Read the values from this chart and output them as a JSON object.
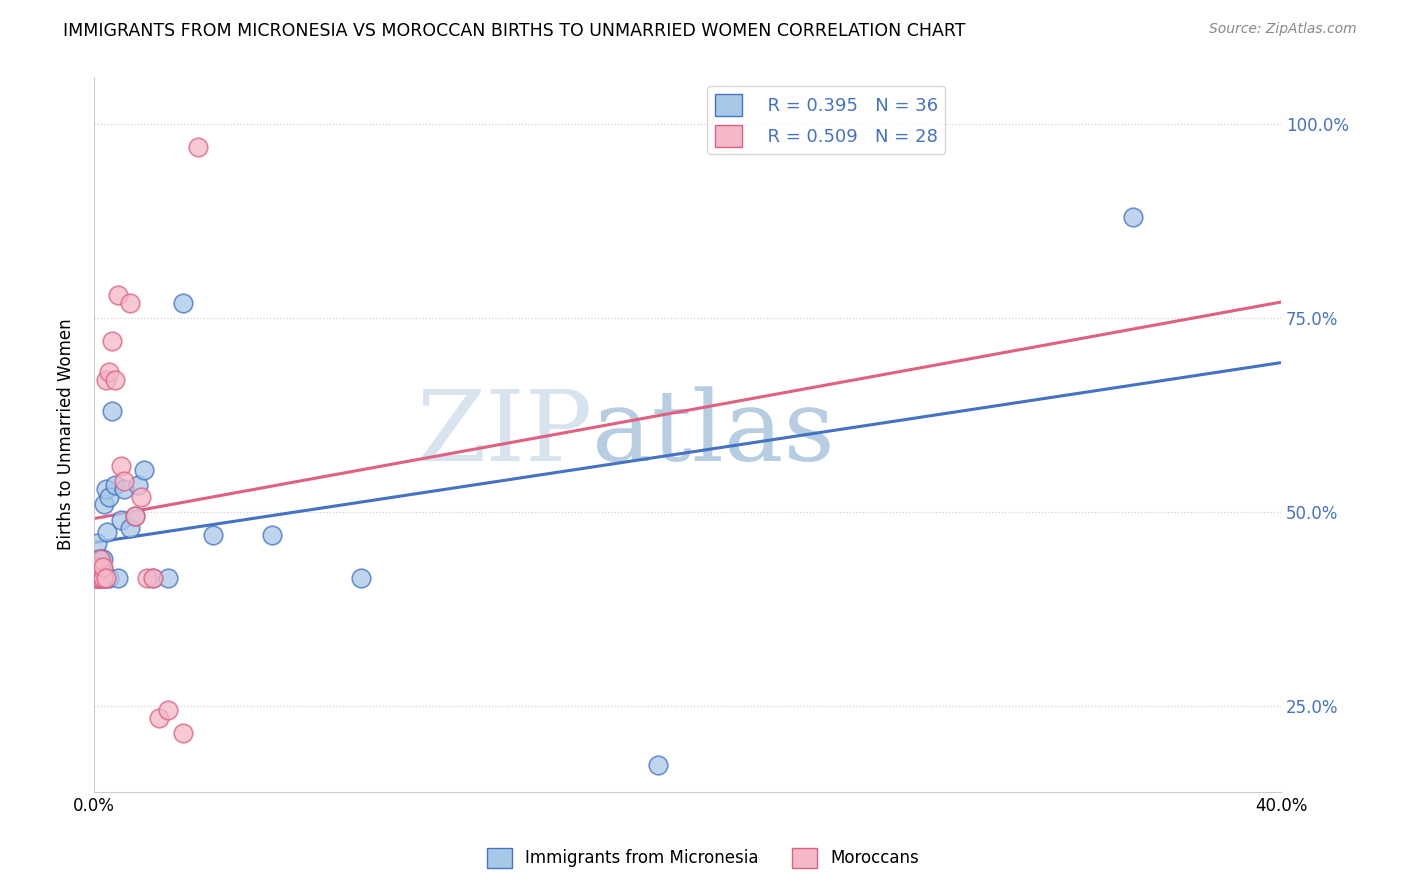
{
  "title": "IMMIGRANTS FROM MICRONESIA VS MOROCCAN BIRTHS TO UNMARRIED WOMEN CORRELATION CHART",
  "source": "Source: ZipAtlas.com",
  "ylabel": "Births to Unmarried Women",
  "xlim": [
    0.0,
    0.4
  ],
  "ylim": [
    0.14,
    1.06
  ],
  "xticks": [
    0.0,
    0.1,
    0.2,
    0.3,
    0.4
  ],
  "xtick_labels": [
    "0.0%",
    "",
    "",
    "",
    "40.0%"
  ],
  "ytick_vals_right": [
    0.25,
    0.5,
    0.75,
    1.0
  ],
  "ytick_labels_right": [
    "25.0%",
    "50.0%",
    "75.0%",
    "100.0%"
  ],
  "watermark_zip": "ZIP",
  "watermark_atlas": "atlas",
  "legend_r1": "R = 0.395",
  "legend_n1": "N = 36",
  "legend_r2": "R = 0.509",
  "legend_n2": "N = 28",
  "blue_scatter_color": "#a8c8e8",
  "blue_edge_color": "#4472c4",
  "pink_scatter_color": "#f4b8c8",
  "pink_edge_color": "#e06080",
  "line_blue_color": "#4472c4",
  "line_pink_color": "#e06080",
  "label1": "Immigrants from Micronesia",
  "label2": "Moroccans",
  "blue_x": [
    0.0005,
    0.001,
    0.001,
    0.0015,
    0.0015,
    0.002,
    0.002,
    0.002,
    0.002,
    0.0025,
    0.003,
    0.003,
    0.003,
    0.0035,
    0.004,
    0.004,
    0.0045,
    0.005,
    0.005,
    0.006,
    0.007,
    0.008,
    0.009,
    0.01,
    0.012,
    0.014,
    0.015,
    0.017,
    0.02,
    0.025,
    0.03,
    0.04,
    0.06,
    0.09,
    0.35,
    0.19
  ],
  "blue_y": [
    0.43,
    0.44,
    0.46,
    0.415,
    0.43,
    0.415,
    0.42,
    0.44,
    0.435,
    0.44,
    0.415,
    0.425,
    0.44,
    0.51,
    0.53,
    0.415,
    0.475,
    0.415,
    0.52,
    0.63,
    0.535,
    0.415,
    0.49,
    0.53,
    0.48,
    0.495,
    0.535,
    0.555,
    0.415,
    0.415,
    0.77,
    0.47,
    0.47,
    0.415,
    0.88,
    0.175
  ],
  "pink_x": [
    0.0005,
    0.001,
    0.001,
    0.0015,
    0.0015,
    0.002,
    0.002,
    0.002,
    0.003,
    0.003,
    0.003,
    0.004,
    0.004,
    0.005,
    0.006,
    0.007,
    0.008,
    0.009,
    0.01,
    0.012,
    0.014,
    0.016,
    0.018,
    0.02,
    0.022,
    0.025,
    0.03,
    0.035
  ],
  "pink_y": [
    0.415,
    0.415,
    0.42,
    0.415,
    0.43,
    0.415,
    0.43,
    0.44,
    0.415,
    0.415,
    0.43,
    0.67,
    0.415,
    0.68,
    0.72,
    0.67,
    0.78,
    0.56,
    0.54,
    0.77,
    0.495,
    0.52,
    0.415,
    0.415,
    0.235,
    0.245,
    0.215,
    0.97
  ]
}
